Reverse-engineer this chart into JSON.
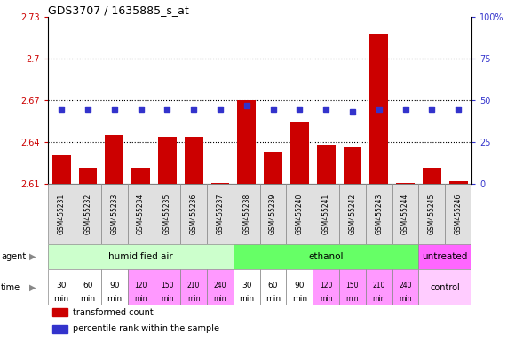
{
  "title": "GDS3707 / 1635885_s_at",
  "samples": [
    "GSM455231",
    "GSM455232",
    "GSM455233",
    "GSM455234",
    "GSM455235",
    "GSM455236",
    "GSM455237",
    "GSM455238",
    "GSM455239",
    "GSM455240",
    "GSM455241",
    "GSM455242",
    "GSM455243",
    "GSM455244",
    "GSM455245",
    "GSM455246"
  ],
  "bar_values": [
    2.631,
    2.622,
    2.645,
    2.622,
    2.644,
    2.644,
    2.611,
    2.67,
    2.633,
    2.655,
    2.638,
    2.637,
    2.718,
    2.611,
    2.622,
    2.612
  ],
  "dot_values": [
    45,
    45,
    45,
    45,
    45,
    45,
    45,
    47,
    45,
    45,
    45,
    43,
    45,
    45,
    45,
    45
  ],
  "ylim_left": [
    2.61,
    2.73
  ],
  "ylim_right": [
    0,
    100
  ],
  "yticks_left": [
    2.61,
    2.64,
    2.67,
    2.7,
    2.73
  ],
  "yticks_right": [
    0,
    25,
    50,
    75,
    100
  ],
  "ytick_left_labels": [
    "2.61",
    "2.64",
    "2.67",
    "2.7",
    "2.73"
  ],
  "ytick_right_labels": [
    "0",
    "25",
    "50",
    "75",
    "100%"
  ],
  "hlines": [
    2.7,
    2.67,
    2.64
  ],
  "bar_color": "#cc0000",
  "dot_color": "#3333cc",
  "dot_size": 5,
  "bar_width": 0.7,
  "agent_groups": [
    {
      "label": "humidified air",
      "start": 0,
      "end": 7,
      "color": "#ccffcc"
    },
    {
      "label": "ethanol",
      "start": 7,
      "end": 14,
      "color": "#66ff66"
    },
    {
      "label": "untreated",
      "start": 14,
      "end": 16,
      "color": "#ff66ff"
    }
  ],
  "time_labels_group": [
    "30\nmin",
    "60\nmin",
    "90\nmin",
    "120\nmin",
    "150\nmin",
    "210\nmin",
    "240\nmin"
  ],
  "time_white_count": 3,
  "time_pink_color": "#ff99ff",
  "time_white_color": "#ffffff",
  "control_bg": "#ffccff",
  "control_label": "control",
  "legend_items": [
    {
      "color": "#cc0000",
      "label": "transformed count"
    },
    {
      "color": "#3333cc",
      "label": "percentile rank within the sample"
    }
  ],
  "label_agent": "agent",
  "label_time": "time",
  "tick_color_left": "#cc0000",
  "tick_color_right": "#3333cc",
  "sample_box_color": "#e0e0e0",
  "fig_width": 5.71,
  "fig_height": 3.84
}
